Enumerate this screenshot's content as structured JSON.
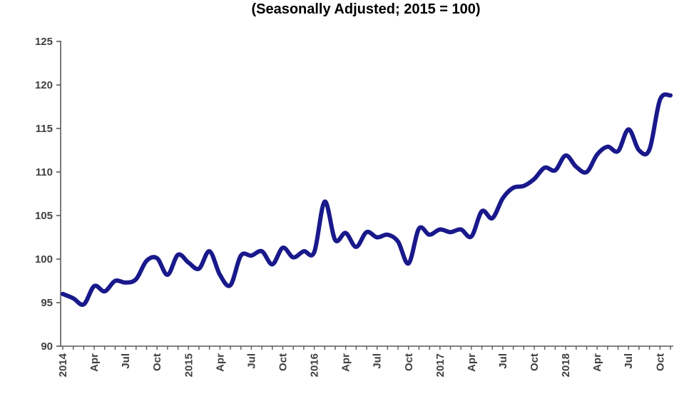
{
  "chart_data": {
    "type": "line",
    "title": "(Seasonally Adjusted; 2015 = 100)",
    "x": [
      "Jan 2014",
      "Feb 2014",
      "Mar 2014",
      "Apr 2014",
      "May 2014",
      "Jun 2014",
      "Jul 2014",
      "Aug 2014",
      "Sep 2014",
      "Oct 2014",
      "Nov 2014",
      "Dec 2014",
      "Jan 2015",
      "Feb 2015",
      "Mar 2015",
      "Apr 2015",
      "May 2015",
      "Jun 2015",
      "Jul 2015",
      "Aug 2015",
      "Sep 2015",
      "Oct 2015",
      "Nov 2015",
      "Dec 2015",
      "Jan 2016",
      "Feb 2016",
      "Mar 2016",
      "Apr 2016",
      "May 2016",
      "Jun 2016",
      "Jul 2016",
      "Aug 2016",
      "Sep 2016",
      "Oct 2016",
      "Nov 2016",
      "Dec 2016",
      "Jan 2017",
      "Feb 2017",
      "Mar 2017",
      "Apr 2017",
      "May 2017",
      "Jun 2017",
      "Jul 2017",
      "Aug 2017",
      "Sep 2017",
      "Oct 2017",
      "Nov 2017",
      "Dec 2017",
      "Jan 2018",
      "Feb 2018",
      "Mar 2018",
      "Apr 2018",
      "May 2018",
      "Jun 2018",
      "Jul 2018",
      "Aug 2018",
      "Sep 2018",
      "Oct 2018",
      "Nov 2018"
    ],
    "values": [
      96.0,
      95.5,
      94.8,
      96.9,
      96.3,
      97.5,
      97.3,
      97.7,
      99.8,
      100.1,
      98.2,
      100.5,
      99.6,
      98.9,
      100.9,
      98.2,
      97.0,
      100.4,
      100.4,
      100.9,
      99.4,
      101.3,
      100.2,
      100.9,
      100.8,
      106.6,
      102.2,
      103.0,
      101.4,
      103.1,
      102.5,
      102.8,
      102.0,
      99.5,
      103.5,
      102.8,
      103.4,
      103.1,
      103.4,
      102.6,
      105.5,
      104.7,
      107.0,
      108.2,
      108.4,
      109.2,
      110.5,
      110.2,
      111.9,
      110.6,
      110.0,
      112.0,
      112.9,
      112.4,
      114.9,
      112.5,
      112.6,
      118.3,
      118.8
    ],
    "x_tick_labels": [
      "2014",
      "Apr",
      "Jul",
      "Oct",
      "2015",
      "Apr",
      "Jul",
      "Oct",
      "2016",
      "Apr",
      "Jul",
      "Oct",
      "2017",
      "Apr",
      "Jul",
      "Oct",
      "2018",
      "Apr",
      "Jul",
      "Oct"
    ],
    "x_label_interval_months": 3,
    "y_ticks": [
      90,
      95,
      100,
      105,
      110,
      115,
      120,
      125
    ],
    "ylim": [
      90,
      125
    ],
    "xlabel": "",
    "ylabel": "",
    "grid": false,
    "legend": "none",
    "smoothed": true,
    "line_color": "#19198C",
    "axis_color": "#595959",
    "tick_label_color": "#3f3f3f"
  }
}
